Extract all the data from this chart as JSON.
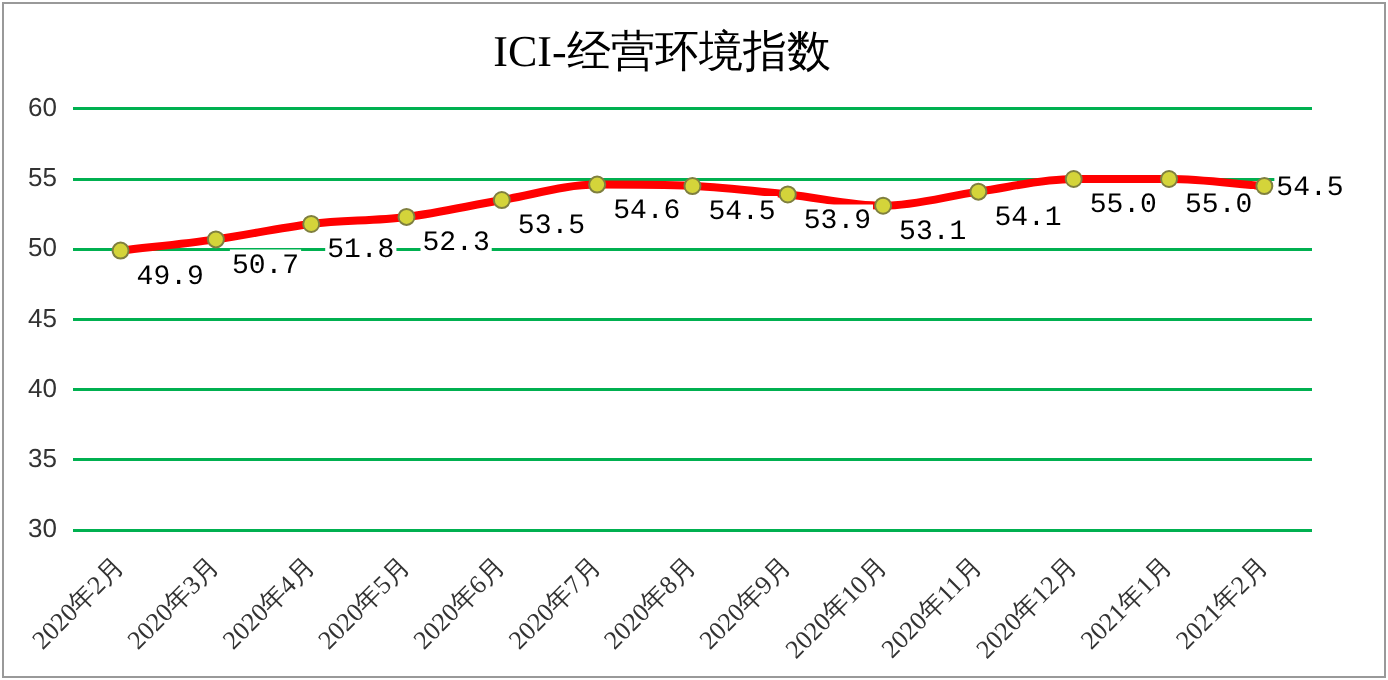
{
  "chart_data": {
    "type": "line",
    "title": "ICI-经营环境指数",
    "categories": [
      "2020年2月",
      "2020年3月",
      "2020年4月",
      "2020年5月",
      "2020年6月",
      "2020年7月",
      "2020年8月",
      "2020年9月",
      "2020年10月",
      "2020年11月",
      "2020年12月",
      "2021年1月",
      "2021年2月"
    ],
    "series": [
      {
        "color": "#ff0000",
        "values": [
          49.9,
          50.7,
          51.8,
          52.3,
          53.5,
          54.6,
          54.5,
          53.9,
          53.1,
          54.1,
          55.0,
          55.0,
          54.5
        ],
        "value_labels": [
          "49.9",
          "50.7",
          "51.8",
          "52.3",
          "53.5",
          "54.6",
          "54.5",
          "53.9",
          "53.1",
          "54.1",
          "55.0",
          "55.0",
          "54.5"
        ]
      }
    ],
    "ylim": [
      30,
      60
    ],
    "yticks": [
      30,
      35,
      40,
      45,
      50,
      55,
      60
    ],
    "grid": "y",
    "legend": false,
    "marker": "circle",
    "line_style": "solid"
  }
}
